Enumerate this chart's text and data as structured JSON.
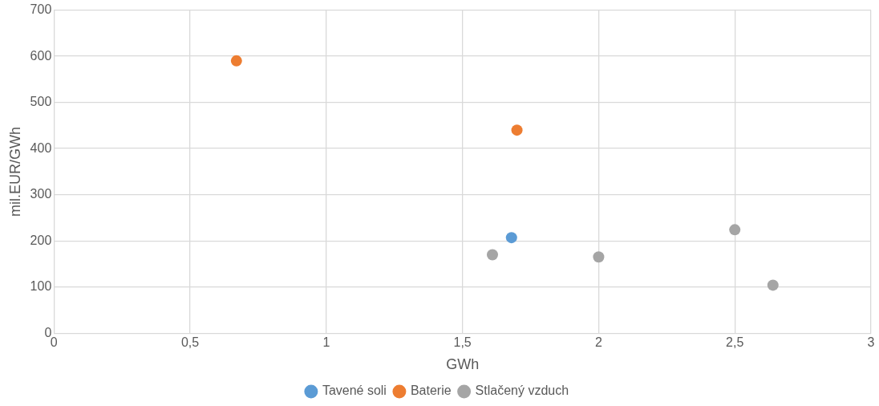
{
  "chart_data": {
    "type": "scatter",
    "xlabel": "GWh",
    "ylabel": "mil.EUR/GWh",
    "xlim": [
      0,
      3
    ],
    "xticks": [
      0,
      {
        "value": 0.5,
        "label": "0,5"
      },
      1,
      {
        "value": 1.5,
        "label": "1,5"
      },
      2,
      {
        "value": 2.5,
        "label": "2,5"
      },
      3
    ],
    "ylim": [
      0,
      700
    ],
    "yticks": [
      0,
      100,
      200,
      300,
      400,
      500,
      600,
      700
    ],
    "grid": true,
    "legend": "bottom",
    "marker": "circle",
    "series": [
      {
        "name": "Tavené soli",
        "color": "#5b9bd5",
        "x": [
          1.68
        ],
        "values": [
          207
        ]
      },
      {
        "name": "Baterie",
        "color": "#ed7d31",
        "x": [
          0.67,
          1.7
        ],
        "values": [
          590,
          440
        ]
      },
      {
        "name": "Stlačený vzduch",
        "color": "#a5a5a5",
        "x": [
          1.61,
          2.0,
          2.5,
          2.64
        ],
        "values": [
          170,
          165,
          224,
          104
        ]
      }
    ]
  }
}
